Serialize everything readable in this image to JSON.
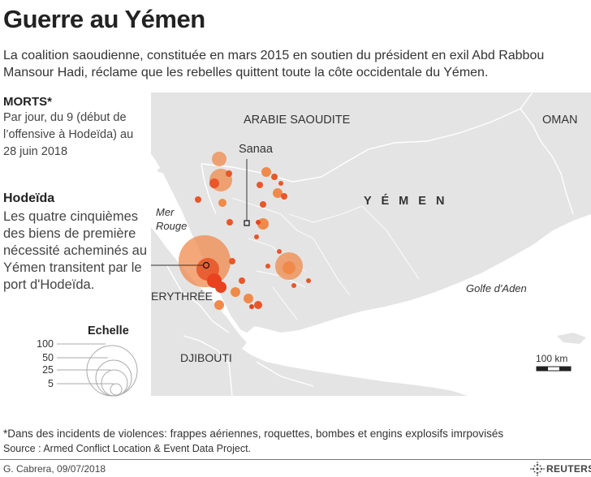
{
  "title": "Guerre au Yémen",
  "subtitle": "La coalition saoudienne, constituée en mars 2015 en soutien du président en exil Abd Rabbou Mansour Hadi, réclame que les rebelles quittent toute la côte occidentale du Yémen.",
  "morts": {
    "label": "MORTS*",
    "description": "Par jour, du 9 (début de l’offensive à Hodeïda) au 28 juin 2018"
  },
  "hodeida": {
    "label": "Hodeïda",
    "description": "Les quatre cinquièmes des biens de première nécessité acheminés au Yémen transitent par le port d'Hodeïda."
  },
  "scale_legend": {
    "title": "Echelle",
    "values": [
      "100",
      "50",
      "25",
      "5"
    ]
  },
  "map": {
    "labels": {
      "saudi": "ARABIE SAOUDITE",
      "oman": "OMAN",
      "yemen": "Y É M E N",
      "eritrea": "ERYTHRÉE",
      "djibouti": "DJIBOUTI",
      "red_sea": "Mer Rouge",
      "gulf_aden": "Golfe d'Aden",
      "sanaa": "Sanaa"
    },
    "scale_bar": "100 km"
  },
  "footnote": "*Dans des incidents de violences: frappes aériennes, roquettes, bombes et engins explosifs imrpovisés",
  "source": "Source : Armed Conflict Location & Event Data Project.",
  "credit": "G. Cabrera,  09/07/2018",
  "logo_text": "REUTERS",
  "colors": {
    "land": "#e4e4e4",
    "sea": "#ffffff",
    "border": "#ffffff",
    "bubble_fill": "#f08a4b",
    "bubble_core": "#e8431e"
  }
}
